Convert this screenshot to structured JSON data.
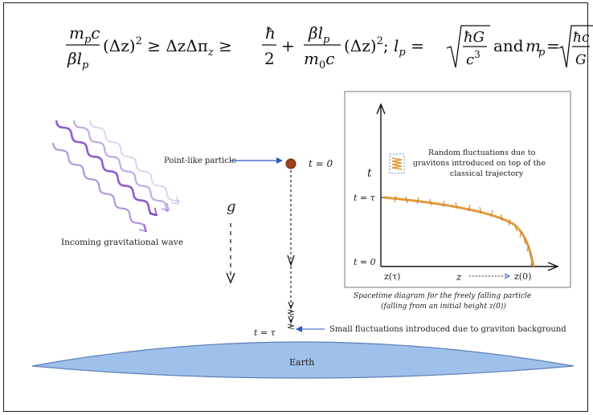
{
  "formula": {
    "full": "m_p c / β l_p (Δz)² ≥ ΔzΔπ_z ≥ ħ/2 + β l_p / m_0 c (Δz)²; l_p = √(ħG/c³) and m_p = √(ħc/G)."
  },
  "labels": {
    "incoming_wave": "Incoming gravitational wave",
    "point_particle": "Point-like particle",
    "t0": "t = 0",
    "g": "g",
    "t_tau": "t = τ",
    "small_fluctuations": "Small fluctuations introduced due to graviton background",
    "earth": "Earth"
  },
  "inset": {
    "legend_line1": "Random fluctuations due to",
    "legend_line2": "gravitons introduced on top of the",
    "legend_line3": "classical trajectory",
    "y_axis_label": "t",
    "tick_t_tau": "t = τ",
    "tick_t_0": "t = 0",
    "x_tick_left": "z(τ)",
    "x_axis_label": "z",
    "x_tick_right": "z(0)",
    "caption_line1": "Spacetime diagram for the freely falling particle",
    "caption_line2": "(falling from an initial height z(0))"
  },
  "colors": {
    "wave": "#7a3fc4",
    "particle": "#a0401a",
    "trajectory": "#e39a3c",
    "earth_fill": "#9fc0ea",
    "earth_stroke": "#5b80b8",
    "arrow_blue": "#2a55c8"
  }
}
